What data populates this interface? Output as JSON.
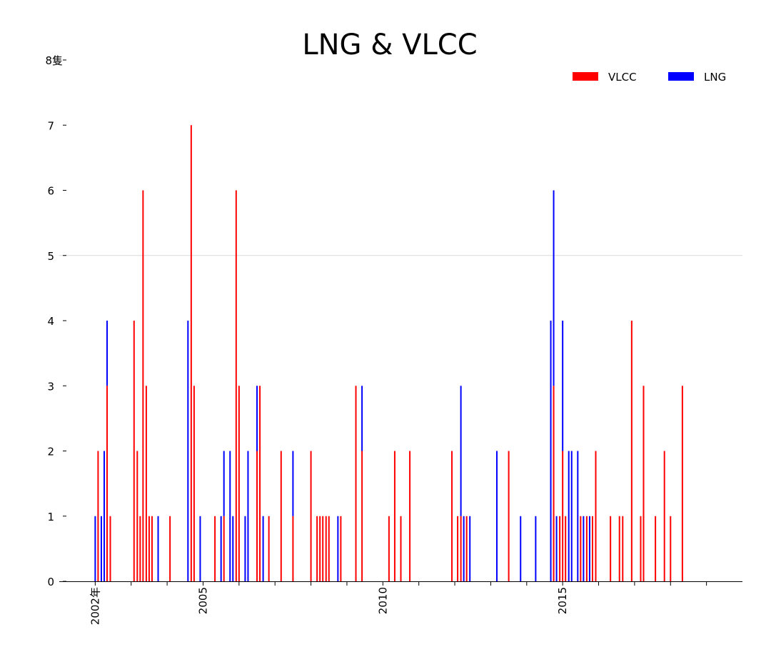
{
  "chart_data": {
    "type": "bar",
    "title": "LNG & VLCC",
    "stacked": true,
    "y_top_label": "8隻",
    "ylim": [
      0,
      8
    ],
    "y_ticks": [
      "0",
      "1",
      "2",
      "3",
      "4",
      "5",
      "6",
      "7"
    ],
    "x_range": [
      2001.0,
      2020.0
    ],
    "x_ticks": [
      {
        "x": 2002.0,
        "label": "2002年"
      },
      {
        "x": 2005.0,
        "label": "2005"
      },
      {
        "x": 2010.0,
        "label": "2010"
      },
      {
        "x": 2015.0,
        "label": "2015"
      }
    ],
    "x_minor_ticks": [
      2003,
      2004,
      2006,
      2007,
      2008,
      2009,
      2011,
      2012,
      2013,
      2014,
      2016,
      2017,
      2018,
      2019
    ],
    "gridlines": [
      5
    ],
    "legend_position": "top-right",
    "series": [
      {
        "name": "VLCC",
        "color": "#ff0000",
        "points": [
          {
            "x": 2002.08,
            "y": 2
          },
          {
            "x": 2002.33,
            "y": 3
          },
          {
            "x": 2002.42,
            "y": 1
          },
          {
            "x": 2003.08,
            "y": 4
          },
          {
            "x": 2003.17,
            "y": 2
          },
          {
            "x": 2003.25,
            "y": 1
          },
          {
            "x": 2003.33,
            "y": 6
          },
          {
            "x": 2003.42,
            "y": 3
          },
          {
            "x": 2003.5,
            "y": 1
          },
          {
            "x": 2003.58,
            "y": 1
          },
          {
            "x": 2004.08,
            "y": 1
          },
          {
            "x": 2004.67,
            "y": 7
          },
          {
            "x": 2004.75,
            "y": 3
          },
          {
            "x": 2005.33,
            "y": 1
          },
          {
            "x": 2005.58,
            "y": 1
          },
          {
            "x": 2005.92,
            "y": 6
          },
          {
            "x": 2006.0,
            "y": 3
          },
          {
            "x": 2006.5,
            "y": 2
          },
          {
            "x": 2006.58,
            "y": 3
          },
          {
            "x": 2006.83,
            "y": 1
          },
          {
            "x": 2007.17,
            "y": 2
          },
          {
            "x": 2007.5,
            "y": 1
          },
          {
            "x": 2008.0,
            "y": 2
          },
          {
            "x": 2008.17,
            "y": 1
          },
          {
            "x": 2008.25,
            "y": 1
          },
          {
            "x": 2008.33,
            "y": 1
          },
          {
            "x": 2008.42,
            "y": 1
          },
          {
            "x": 2008.5,
            "y": 1
          },
          {
            "x": 2008.83,
            "y": 1
          },
          {
            "x": 2009.25,
            "y": 3
          },
          {
            "x": 2009.42,
            "y": 2
          },
          {
            "x": 2010.17,
            "y": 1
          },
          {
            "x": 2010.33,
            "y": 2
          },
          {
            "x": 2010.5,
            "y": 1
          },
          {
            "x": 2010.75,
            "y": 2
          },
          {
            "x": 2011.92,
            "y": 2
          },
          {
            "x": 2012.08,
            "y": 1
          },
          {
            "x": 2012.17,
            "y": 1
          },
          {
            "x": 2012.33,
            "y": 1
          },
          {
            "x": 2013.5,
            "y": 2
          },
          {
            "x": 2014.75,
            "y": 3
          },
          {
            "x": 2014.92,
            "y": 1
          },
          {
            "x": 2015.0,
            "y": 2
          },
          {
            "x": 2015.08,
            "y": 1
          },
          {
            "x": 2015.5,
            "y": 1
          },
          {
            "x": 2015.67,
            "y": 1
          },
          {
            "x": 2015.83,
            "y": 1
          },
          {
            "x": 2015.92,
            "y": 2
          },
          {
            "x": 2016.33,
            "y": 1
          },
          {
            "x": 2016.58,
            "y": 1
          },
          {
            "x": 2016.67,
            "y": 1
          },
          {
            "x": 2016.92,
            "y": 4
          },
          {
            "x": 2017.17,
            "y": 1
          },
          {
            "x": 2017.25,
            "y": 3
          },
          {
            "x": 2017.58,
            "y": 1
          },
          {
            "x": 2017.83,
            "y": 2
          },
          {
            "x": 2018.0,
            "y": 1
          },
          {
            "x": 2018.33,
            "y": 3
          }
        ]
      },
      {
        "name": "LNG",
        "color": "#0000ff",
        "points": [
          {
            "x": 2002.0,
            "y": 1
          },
          {
            "x": 2002.17,
            "y": 1
          },
          {
            "x": 2002.25,
            "y": 2
          },
          {
            "x": 2002.33,
            "y": 1
          },
          {
            "x": 2003.75,
            "y": 1
          },
          {
            "x": 2004.58,
            "y": 4
          },
          {
            "x": 2004.92,
            "y": 1
          },
          {
            "x": 2005.5,
            "y": 1
          },
          {
            "x": 2005.58,
            "y": 1
          },
          {
            "x": 2005.75,
            "y": 2
          },
          {
            "x": 2005.83,
            "y": 1
          },
          {
            "x": 2006.17,
            "y": 1
          },
          {
            "x": 2006.25,
            "y": 2
          },
          {
            "x": 2006.5,
            "y": 1
          },
          {
            "x": 2006.67,
            "y": 1
          },
          {
            "x": 2007.5,
            "y": 1
          },
          {
            "x": 2008.75,
            "y": 1
          },
          {
            "x": 2009.42,
            "y": 1
          },
          {
            "x": 2012.17,
            "y": 2
          },
          {
            "x": 2012.25,
            "y": 1
          },
          {
            "x": 2012.42,
            "y": 1
          },
          {
            "x": 2013.17,
            "y": 2
          },
          {
            "x": 2013.83,
            "y": 1
          },
          {
            "x": 2014.25,
            "y": 1
          },
          {
            "x": 2014.67,
            "y": 4
          },
          {
            "x": 2014.75,
            "y": 3
          },
          {
            "x": 2014.83,
            "y": 1
          },
          {
            "x": 2015.0,
            "y": 2
          },
          {
            "x": 2015.17,
            "y": 2
          },
          {
            "x": 2015.25,
            "y": 2
          },
          {
            "x": 2015.42,
            "y": 2
          },
          {
            "x": 2015.58,
            "y": 1
          },
          {
            "x": 2015.75,
            "y": 1
          }
        ]
      }
    ]
  }
}
